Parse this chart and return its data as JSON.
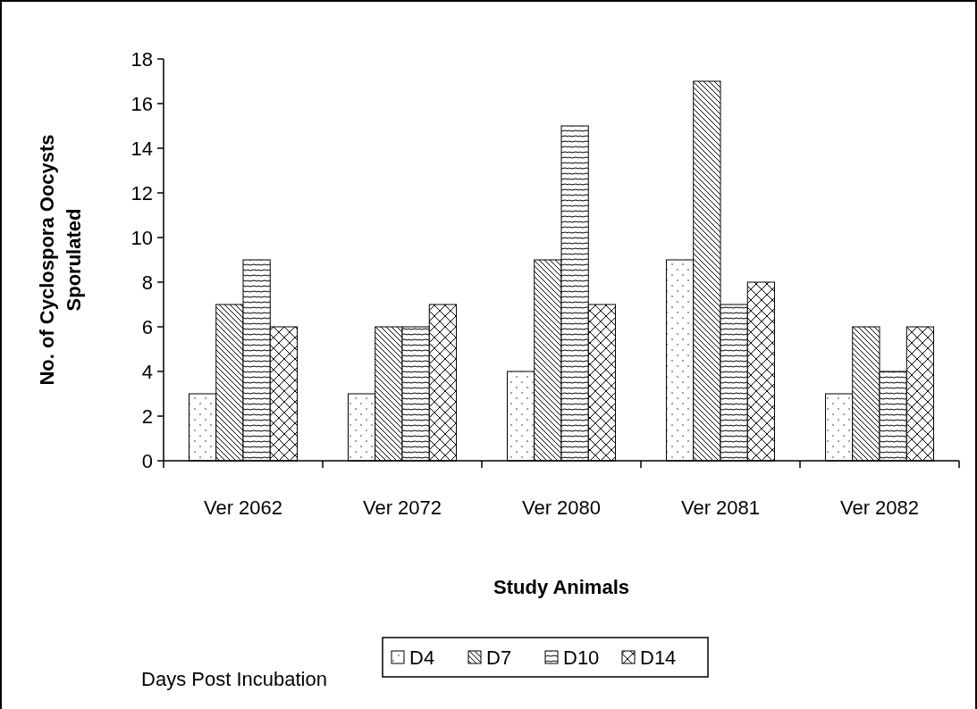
{
  "chart_data": {
    "type": "bar",
    "xlabel": "Study Animals",
    "ylabel": "No. of Cyclospora Oocysts Sporulated",
    "legend_title": "Days Post Incubation",
    "legend": "bottom",
    "grid": false,
    "categories": [
      "Ver 2062",
      "Ver 2072",
      "Ver 2080",
      "Ver 2081",
      "Ver 2082"
    ],
    "ylim": [
      0,
      18
    ],
    "yticks": [
      0,
      2,
      4,
      6,
      8,
      10,
      12,
      14,
      16,
      18
    ],
    "series": [
      {
        "name": "D4",
        "color": "#ffffff",
        "values": [
          3,
          3,
          4,
          9,
          3
        ]
      },
      {
        "name": "D7",
        "color": "#ffffff",
        "values": [
          7,
          6,
          9,
          17,
          6
        ]
      },
      {
        "name": "D10",
        "color": "#ffffff",
        "values": [
          9,
          6,
          15,
          7,
          4
        ]
      },
      {
        "name": "D14",
        "color": "#ffffff",
        "values": [
          6,
          7,
          7,
          8,
          6
        ]
      }
    ]
  }
}
